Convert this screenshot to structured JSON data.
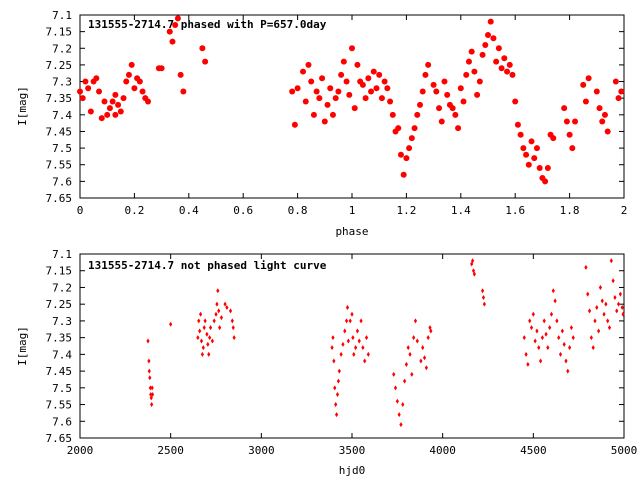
{
  "chart_data": [
    {
      "type": "scatter",
      "title": "131555-2714.7 phased with P=657.0day",
      "xlabel": "phase",
      "ylabel": "I[mag]",
      "xlim": [
        0,
        2
      ],
      "ylim": [
        7.65,
        7.1
      ],
      "y_inverted": true,
      "grid": false,
      "marker": "filled-circle",
      "color": "#ff0000",
      "x_ticks": [
        "0",
        "0.2",
        "0.4",
        "0.6",
        "0.8",
        "1",
        "1.2",
        "1.4",
        "1.6",
        "1.8",
        "2"
      ],
      "y_ticks": [
        "7.1",
        "7.15",
        "7.2",
        "7.25",
        "7.3",
        "7.35",
        "7.4",
        "7.45",
        "7.5",
        "7.55",
        "7.6",
        "7.65"
      ],
      "points": [
        [
          0.0,
          7.33
        ],
        [
          0.01,
          7.35
        ],
        [
          0.02,
          7.3
        ],
        [
          0.03,
          7.32
        ],
        [
          0.04,
          7.39
        ],
        [
          0.05,
          7.3
        ],
        [
          0.06,
          7.29
        ],
        [
          0.07,
          7.33
        ],
        [
          0.08,
          7.41
        ],
        [
          0.09,
          7.36
        ],
        [
          0.1,
          7.4
        ],
        [
          0.11,
          7.38
        ],
        [
          0.12,
          7.36
        ],
        [
          0.13,
          7.34
        ],
        [
          0.13,
          7.4
        ],
        [
          0.14,
          7.37
        ],
        [
          0.15,
          7.39
        ],
        [
          0.16,
          7.35
        ],
        [
          0.17,
          7.3
        ],
        [
          0.18,
          7.28
        ],
        [
          0.19,
          7.25
        ],
        [
          0.2,
          7.32
        ],
        [
          0.21,
          7.29
        ],
        [
          0.22,
          7.3
        ],
        [
          0.23,
          7.33
        ],
        [
          0.24,
          7.35
        ],
        [
          0.25,
          7.36
        ],
        [
          0.29,
          7.26
        ],
        [
          0.3,
          7.26
        ],
        [
          0.33,
          7.15
        ],
        [
          0.34,
          7.18
        ],
        [
          0.35,
          7.13
        ],
        [
          0.36,
          7.11
        ],
        [
          0.37,
          7.28
        ],
        [
          0.38,
          7.33
        ],
        [
          0.45,
          7.2
        ],
        [
          0.46,
          7.24
        ],
        [
          0.78,
          7.33
        ],
        [
          0.79,
          7.43
        ],
        [
          0.8,
          7.32
        ],
        [
          0.82,
          7.27
        ],
        [
          0.83,
          7.36
        ],
        [
          0.84,
          7.25
        ],
        [
          0.85,
          7.3
        ],
        [
          0.86,
          7.4
        ],
        [
          0.87,
          7.33
        ],
        [
          0.88,
          7.35
        ],
        [
          0.89,
          7.29
        ],
        [
          0.9,
          7.42
        ],
        [
          0.91,
          7.37
        ],
        [
          0.92,
          7.32
        ],
        [
          0.93,
          7.4
        ],
        [
          0.94,
          7.35
        ],
        [
          0.95,
          7.33
        ],
        [
          0.96,
          7.28
        ],
        [
          0.97,
          7.24
        ],
        [
          0.98,
          7.3
        ],
        [
          0.99,
          7.34
        ],
        [
          1.0,
          7.2
        ],
        [
          1.01,
          7.38
        ],
        [
          1.02,
          7.25
        ],
        [
          1.03,
          7.3
        ],
        [
          1.04,
          7.31
        ],
        [
          1.05,
          7.35
        ],
        [
          1.06,
          7.29
        ],
        [
          1.07,
          7.33
        ],
        [
          1.08,
          7.27
        ],
        [
          1.09,
          7.32
        ],
        [
          1.1,
          7.28
        ],
        [
          1.11,
          7.35
        ],
        [
          1.12,
          7.3
        ],
        [
          1.13,
          7.32
        ],
        [
          1.14,
          7.36
        ],
        [
          1.15,
          7.4
        ],
        [
          1.16,
          7.45
        ],
        [
          1.17,
          7.44
        ],
        [
          1.18,
          7.52
        ],
        [
          1.19,
          7.58
        ],
        [
          1.2,
          7.53
        ],
        [
          1.21,
          7.5
        ],
        [
          1.22,
          7.47
        ],
        [
          1.23,
          7.44
        ],
        [
          1.24,
          7.4
        ],
        [
          1.25,
          7.37
        ],
        [
          1.26,
          7.33
        ],
        [
          1.27,
          7.28
        ],
        [
          1.28,
          7.25
        ],
        [
          1.3,
          7.31
        ],
        [
          1.31,
          7.33
        ],
        [
          1.32,
          7.38
        ],
        [
          1.33,
          7.42
        ],
        [
          1.34,
          7.3
        ],
        [
          1.35,
          7.34
        ],
        [
          1.36,
          7.37
        ],
        [
          1.37,
          7.38
        ],
        [
          1.38,
          7.4
        ],
        [
          1.39,
          7.44
        ],
        [
          1.4,
          7.32
        ],
        [
          1.41,
          7.36
        ],
        [
          1.42,
          7.28
        ],
        [
          1.43,
          7.24
        ],
        [
          1.44,
          7.21
        ],
        [
          1.45,
          7.27
        ],
        [
          1.46,
          7.34
        ],
        [
          1.47,
          7.3
        ],
        [
          1.48,
          7.22
        ],
        [
          1.49,
          7.19
        ],
        [
          1.5,
          7.16
        ],
        [
          1.51,
          7.12
        ],
        [
          1.52,
          7.17
        ],
        [
          1.53,
          7.24
        ],
        [
          1.54,
          7.2
        ],
        [
          1.55,
          7.26
        ],
        [
          1.56,
          7.23
        ],
        [
          1.57,
          7.27
        ],
        [
          1.58,
          7.25
        ],
        [
          1.59,
          7.28
        ],
        [
          1.6,
          7.36
        ],
        [
          1.61,
          7.43
        ],
        [
          1.62,
          7.46
        ],
        [
          1.63,
          7.5
        ],
        [
          1.64,
          7.52
        ],
        [
          1.65,
          7.55
        ],
        [
          1.66,
          7.48
        ],
        [
          1.67,
          7.53
        ],
        [
          1.68,
          7.5
        ],
        [
          1.69,
          7.56
        ],
        [
          1.7,
          7.59
        ],
        [
          1.71,
          7.6
        ],
        [
          1.72,
          7.56
        ],
        [
          1.73,
          7.46
        ],
        [
          1.74,
          7.47
        ],
        [
          1.78,
          7.38
        ],
        [
          1.79,
          7.42
        ],
        [
          1.8,
          7.46
        ],
        [
          1.81,
          7.5
        ],
        [
          1.82,
          7.42
        ],
        [
          1.85,
          7.31
        ],
        [
          1.86,
          7.36
        ],
        [
          1.87,
          7.29
        ],
        [
          1.9,
          7.33
        ],
        [
          1.91,
          7.38
        ],
        [
          1.92,
          7.42
        ],
        [
          1.93,
          7.4
        ],
        [
          1.94,
          7.45
        ],
        [
          1.97,
          7.3
        ],
        [
          1.98,
          7.35
        ],
        [
          1.99,
          7.33
        ]
      ]
    },
    {
      "type": "scatter",
      "title": "131555-2714.7 not phased light curve",
      "xlabel": "hjd0",
      "ylabel": "I[mag]",
      "xlim": [
        2000,
        5000
      ],
      "ylim": [
        7.65,
        7.1
      ],
      "y_inverted": true,
      "grid": false,
      "marker": "small-diamond",
      "color": "#ff0000",
      "x_ticks": [
        "2000",
        "2500",
        "3000",
        "3500",
        "4000",
        "4500",
        "5000"
      ],
      "y_ticks": [
        "7.1",
        "7.15",
        "7.2",
        "7.25",
        "7.3",
        "7.35",
        "7.4",
        "7.45",
        "7.5",
        "7.55",
        "7.6",
        "7.65"
      ],
      "points": [
        [
          2375,
          7.36
        ],
        [
          2380,
          7.42
        ],
        [
          2382,
          7.45
        ],
        [
          2385,
          7.47
        ],
        [
          2388,
          7.5
        ],
        [
          2390,
          7.52
        ],
        [
          2393,
          7.53
        ],
        [
          2395,
          7.55
        ],
        [
          2398,
          7.5
        ],
        [
          2400,
          7.52
        ],
        [
          2500,
          7.31
        ],
        [
          2650,
          7.35
        ],
        [
          2655,
          7.3
        ],
        [
          2660,
          7.33
        ],
        [
          2665,
          7.28
        ],
        [
          2670,
          7.36
        ],
        [
          2675,
          7.4
        ],
        [
          2680,
          7.38
        ],
        [
          2685,
          7.32
        ],
        [
          2690,
          7.3
        ],
        [
          2700,
          7.34
        ],
        [
          2705,
          7.37
        ],
        [
          2710,
          7.4
        ],
        [
          2715,
          7.35
        ],
        [
          2720,
          7.32
        ],
        [
          2730,
          7.36
        ],
        [
          2740,
          7.3
        ],
        [
          2750,
          7.28
        ],
        [
          2755,
          7.25
        ],
        [
          2760,
          7.21
        ],
        [
          2765,
          7.27
        ],
        [
          2770,
          7.32
        ],
        [
          2780,
          7.29
        ],
        [
          2800,
          7.25
        ],
        [
          2810,
          7.26
        ],
        [
          2830,
          7.27
        ],
        [
          2840,
          7.3
        ],
        [
          2845,
          7.32
        ],
        [
          2850,
          7.35
        ],
        [
          3390,
          7.38
        ],
        [
          3395,
          7.35
        ],
        [
          3400,
          7.42
        ],
        [
          3405,
          7.5
        ],
        [
          3410,
          7.55
        ],
        [
          3415,
          7.58
        ],
        [
          3420,
          7.52
        ],
        [
          3425,
          7.48
        ],
        [
          3430,
          7.45
        ],
        [
          3440,
          7.4
        ],
        [
          3450,
          7.37
        ],
        [
          3460,
          7.33
        ],
        [
          3470,
          7.3
        ],
        [
          3475,
          7.26
        ],
        [
          3480,
          7.36
        ],
        [
          3490,
          7.3
        ],
        [
          3500,
          7.28
        ],
        [
          3505,
          7.35
        ],
        [
          3510,
          7.4
        ],
        [
          3520,
          7.38
        ],
        [
          3530,
          7.33
        ],
        [
          3540,
          7.36
        ],
        [
          3550,
          7.3
        ],
        [
          3560,
          7.38
        ],
        [
          3570,
          7.42
        ],
        [
          3580,
          7.35
        ],
        [
          3590,
          7.4
        ],
        [
          3730,
          7.46
        ],
        [
          3740,
          7.5
        ],
        [
          3750,
          7.54
        ],
        [
          3760,
          7.58
        ],
        [
          3770,
          7.61
        ],
        [
          3780,
          7.55
        ],
        [
          3790,
          7.48
        ],
        [
          3800,
          7.43
        ],
        [
          3810,
          7.38
        ],
        [
          3820,
          7.4
        ],
        [
          3830,
          7.46
        ],
        [
          3840,
          7.35
        ],
        [
          3850,
          7.3
        ],
        [
          3860,
          7.36
        ],
        [
          3880,
          7.42
        ],
        [
          3890,
          7.38
        ],
        [
          3900,
          7.41
        ],
        [
          3910,
          7.44
        ],
        [
          3920,
          7.35
        ],
        [
          3930,
          7.32
        ],
        [
          3935,
          7.33
        ],
        [
          4160,
          7.13
        ],
        [
          4165,
          7.12
        ],
        [
          4170,
          7.15
        ],
        [
          4175,
          7.16
        ],
        [
          4220,
          7.21
        ],
        [
          4225,
          7.23
        ],
        [
          4230,
          7.25
        ],
        [
          4450,
          7.35
        ],
        [
          4460,
          7.4
        ],
        [
          4470,
          7.43
        ],
        [
          4480,
          7.3
        ],
        [
          4490,
          7.32
        ],
        [
          4500,
          7.28
        ],
        [
          4510,
          7.36
        ],
        [
          4520,
          7.33
        ],
        [
          4530,
          7.38
        ],
        [
          4540,
          7.42
        ],
        [
          4550,
          7.35
        ],
        [
          4560,
          7.3
        ],
        [
          4570,
          7.34
        ],
        [
          4580,
          7.38
        ],
        [
          4590,
          7.32
        ],
        [
          4600,
          7.28
        ],
        [
          4610,
          7.21
        ],
        [
          4620,
          7.24
        ],
        [
          4630,
          7.3
        ],
        [
          4640,
          7.35
        ],
        [
          4650,
          7.4
        ],
        [
          4660,
          7.33
        ],
        [
          4670,
          7.37
        ],
        [
          4680,
          7.42
        ],
        [
          4690,
          7.45
        ],
        [
          4700,
          7.38
        ],
        [
          4710,
          7.32
        ],
        [
          4720,
          7.35
        ],
        [
          4790,
          7.14
        ],
        [
          4800,
          7.22
        ],
        [
          4810,
          7.27
        ],
        [
          4820,
          7.35
        ],
        [
          4830,
          7.38
        ],
        [
          4840,
          7.3
        ],
        [
          4850,
          7.26
        ],
        [
          4860,
          7.33
        ],
        [
          4870,
          7.2
        ],
        [
          4880,
          7.24
        ],
        [
          4890,
          7.28
        ],
        [
          4900,
          7.25
        ],
        [
          4910,
          7.3
        ],
        [
          4920,
          7.32
        ],
        [
          4930,
          7.12
        ],
        [
          4940,
          7.18
        ],
        [
          4950,
          7.23
        ],
        [
          4960,
          7.27
        ],
        [
          4970,
          7.25
        ],
        [
          4980,
          7.22
        ],
        [
          4990,
          7.26
        ],
        [
          4995,
          7.28
        ]
      ]
    }
  ]
}
